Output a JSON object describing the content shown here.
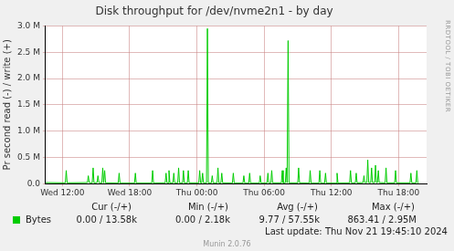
{
  "chart_data": {
    "type": "line",
    "title": "Disk throughput for /dev/nvme2n1 - by day",
    "y_label": "Pr second read (-) / write (+)",
    "side_text": "RRDTOOL / TOBI OETIKER",
    "last_update": "Last update: Thu Nov 21 19:45:10 2024",
    "footer": "Munin 2.0.76",
    "grid": true,
    "xlim": [
      10.5,
      44.5
    ],
    "xticks": [
      {
        "value": 12,
        "label": "Wed 12:00"
      },
      {
        "value": 18,
        "label": "Wed 18:00"
      },
      {
        "value": 24,
        "label": "Thu 00:00"
      },
      {
        "value": 30,
        "label": "Thu 06:00"
      },
      {
        "value": 36,
        "label": "Thu 12:00"
      },
      {
        "value": 42,
        "label": "Thu 18:00"
      }
    ],
    "ylim": [
      0,
      3000000
    ],
    "yticks": [
      {
        "value": 0,
        "label": "0.0"
      },
      {
        "value": 500000,
        "label": "0.5 M"
      },
      {
        "value": 1000000,
        "label": "1.0 M"
      },
      {
        "value": 1500000,
        "label": "1.5 M"
      },
      {
        "value": 2000000,
        "label": "2.0 M"
      },
      {
        "value": 2500000,
        "label": "2.5 M"
      },
      {
        "value": 3000000,
        "label": "3.0 M"
      }
    ],
    "x": [
      10.5,
      12.26,
      12.34,
      12.42,
      14.23,
      14.31,
      14.39,
      14.66,
      14.74,
      14.82,
      15.09,
      15.17,
      15.25,
      15.52,
      15.6,
      15.68,
      15.7,
      15.77,
      15.85,
      16.98,
      17.06,
      17.14,
      18.43,
      18.51,
      18.59,
      19.97,
      20.05,
      20.13,
      21.17,
      21.25,
      21.33,
      21.43,
      21.51,
      21.59,
      21.86,
      21.94,
      22.02,
      22.29,
      22.37,
      22.45,
      22.72,
      22.8,
      22.88,
      23.15,
      23.23,
      23.31,
      24.17,
      24.25,
      24.33,
      24.43,
      24.51,
      24.59,
      24.86,
      24.94,
      25.02,
      25.29,
      25.37,
      25.45,
      25.8,
      25.88,
      25.96,
      26.14,
      26.22,
      26.3,
      27.17,
      27.25,
      27.33,
      28.11,
      28.19,
      28.27,
      28.63,
      28.71,
      28.79,
      29.57,
      29.65,
      29.73,
      30.26,
      30.34,
      30.42,
      30.6,
      30.68,
      30.76,
      31.54,
      31.62,
      31.7,
      31.89,
      31.97,
      32.05,
      32.06,
      32.14,
      32.22,
      33.0,
      33.08,
      33.16,
      34.03,
      34.11,
      34.19,
      34.89,
      34.97,
      35.05,
      35.4,
      35.48,
      35.56,
      36.43,
      36.51,
      36.59,
      37.63,
      37.71,
      37.79,
      38.14,
      38.22,
      38.3,
      38.83,
      38.91,
      38.99,
      39.17,
      39.25,
      39.33,
      39.51,
      39.59,
      39.67,
      39.86,
      39.94,
      40.02,
      40.11,
      40.19,
      40.27,
      40.8,
      40.88,
      40.96,
      41.65,
      41.73,
      41.81,
      43.02,
      43.1,
      43.18,
      43.55,
      43.63,
      43.71,
      43.75
    ],
    "series": [
      {
        "name": "Bytes",
        "color": "#00cc00",
        "values": [
          20000,
          15000,
          250000,
          15000,
          20000,
          150000,
          20000,
          15000,
          300000,
          15000,
          20000,
          150000,
          20000,
          15000,
          300000,
          15000,
          15000,
          250000,
          15000,
          10000,
          200000,
          10000,
          10000,
          200000,
          10000,
          10000,
          250000,
          10000,
          15000,
          200000,
          15000,
          15000,
          250000,
          15000,
          15000,
          200000,
          15000,
          15000,
          300000,
          15000,
          15000,
          250000,
          15000,
          15000,
          250000,
          15000,
          15000,
          250000,
          15000,
          15000,
          200000,
          15000,
          15000,
          2950000,
          15000,
          15000,
          150000,
          15000,
          15000,
          300000,
          15000,
          15000,
          200000,
          15000,
          10000,
          200000,
          10000,
          10000,
          150000,
          10000,
          10000,
          200000,
          10000,
          10000,
          150000,
          10000,
          15000,
          200000,
          15000,
          15000,
          250000,
          15000,
          15000,
          250000,
          15000,
          15000,
          300000,
          15000,
          15000,
          2720000,
          15000,
          15000,
          300000,
          15000,
          10000,
          250000,
          10000,
          10000,
          250000,
          10000,
          10000,
          200000,
          10000,
          10000,
          200000,
          10000,
          15000,
          250000,
          15000,
          15000,
          200000,
          15000,
          20000,
          150000,
          20000,
          20000,
          450000,
          20000,
          20000,
          300000,
          20000,
          20000,
          350000,
          20000,
          20000,
          250000,
          20000,
          15000,
          300000,
          15000,
          15000,
          250000,
          15000,
          15000,
          200000,
          15000,
          15000,
          250000,
          15000,
          13580
        ]
      }
    ],
    "legend_table": {
      "headers": [
        "Cur (-/+)",
        "Min (-/+)",
        "Avg (-/+)",
        "Max (-/+)"
      ],
      "rows": [
        {
          "name": "Bytes",
          "cells": [
            "0.00 / 13.58k",
            "0.00 / 2.18k",
            "9.77 / 57.55k",
            "863.41 / 2.95M"
          ]
        }
      ]
    }
  }
}
